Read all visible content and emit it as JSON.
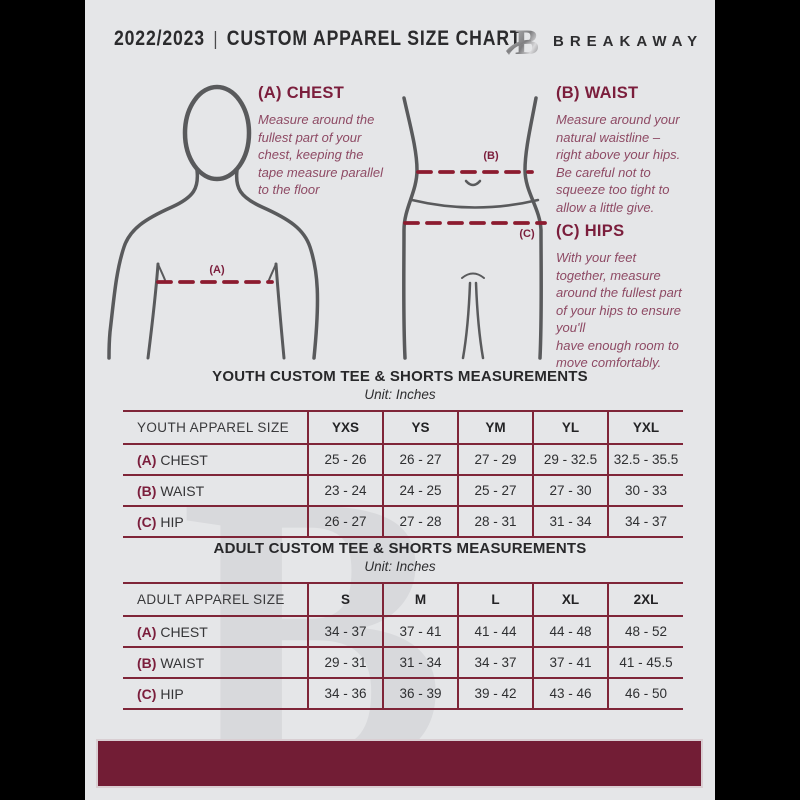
{
  "header": {
    "season": "2022/2023",
    "divider": "|",
    "title": "CUSTOM APPAREL SIZE CHART",
    "brand": "BREAKAWAY",
    "logo_letter": "B"
  },
  "instructions": [
    {
      "label": "(A) CHEST",
      "text": "Measure around the\nfullest part of your\nchest, keeping the\ntape measure parallel\nto the floor"
    },
    {
      "label": "(B) WAIST",
      "text": "Measure around your\nnatural waistline –\nright above your hips.\nBe careful not to\nsqueeze too tight to\nallow a little give."
    },
    {
      "label": "(C) HIPS",
      "text": "With your feet\ntogether, measure\naround the fullest part\nof your hips to ensure\nyou'll\nhave enough room to\nmove comfortably."
    }
  ],
  "diagram_labels": {
    "chest": "(A)",
    "waist": "(B)",
    "hip": "(C)"
  },
  "tables": [
    {
      "title": "YOUTH CUSTOM TEE & SHORTS MEASUREMENTS",
      "unit": "Unit: Inches",
      "size_header": "YOUTH APPAREL SIZE",
      "sizes": [
        "YXS",
        "YS",
        "YM",
        "YL",
        "YXL"
      ],
      "rows": [
        {
          "key": "(A)",
          "label": "CHEST",
          "values": [
            "25 - 26",
            "26 - 27",
            "27 - 29",
            "29 - 32.5",
            "32.5 - 35.5"
          ]
        },
        {
          "key": "(B)",
          "label": "WAIST",
          "values": [
            "23 - 24",
            "24 - 25",
            "25 - 27",
            "27 - 30",
            "30 - 33"
          ]
        },
        {
          "key": "(C)",
          "label": "HIP",
          "values": [
            "26 - 27",
            "27 - 28",
            "28 - 31",
            "31 - 34",
            "34 - 37"
          ]
        }
      ]
    },
    {
      "title": "ADULT CUSTOM TEE & SHORTS MEASUREMENTS",
      "unit": "Unit: Inches",
      "size_header": "ADULT APPAREL SIZE",
      "sizes": [
        "S",
        "M",
        "L",
        "XL",
        "2XL"
      ],
      "rows": [
        {
          "key": "(A)",
          "label": "CHEST",
          "values": [
            "34 - 37",
            "37 - 41",
            "41 - 44",
            "44 - 48",
            "48 - 52"
          ]
        },
        {
          "key": "(B)",
          "label": "WAIST",
          "values": [
            "29 - 31",
            "31 - 34",
            "34 - 37",
            "37 - 41",
            "41 - 45.5"
          ]
        },
        {
          "key": "(C)",
          "label": "HIP",
          "values": [
            "34 - 36",
            "36 - 39",
            "39 - 42",
            "43 - 46",
            "46 - 50"
          ]
        }
      ]
    }
  ],
  "colors": {
    "footer_bar": "#721d35",
    "heading_maroon": "#7b1e3c",
    "body_plum": "#8e4a64",
    "dashed_line": "#8c1b2f",
    "figure_line": "#595a5c",
    "table_border": "#7f2538",
    "page_bg": "#e5e6e8",
    "canvas_bg": "#000000"
  }
}
